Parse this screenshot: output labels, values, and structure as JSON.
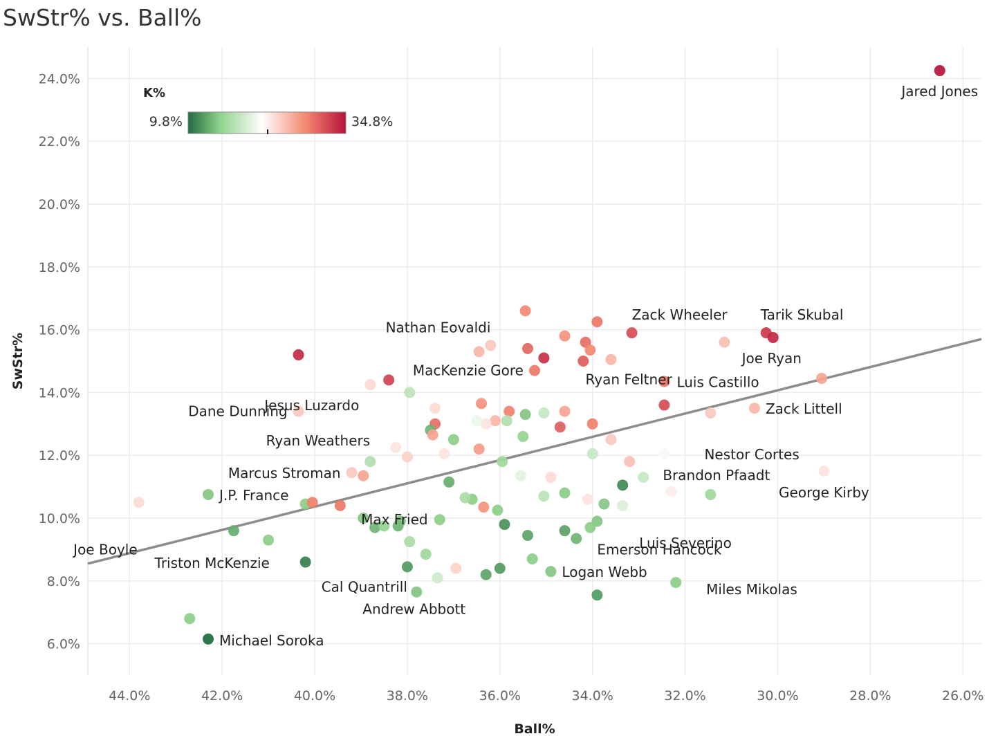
{
  "chart_data": {
    "type": "scatter",
    "title": "SwStr% vs. Ball%",
    "xlabel": "Ball%",
    "ylabel": "SwStr%",
    "x_reversed": true,
    "xlim": [
      44.9,
      25.6
    ],
    "ylim": [
      5.0,
      25.0
    ],
    "x_ticks": [
      44,
      42,
      40,
      38,
      36,
      34,
      32,
      30,
      28,
      26
    ],
    "x_tick_labels": [
      "44.0%",
      "42.0%",
      "40.0%",
      "38.0%",
      "36.0%",
      "34.0%",
      "32.0%",
      "30.0%",
      "28.0%",
      "26.0%"
    ],
    "y_ticks": [
      6,
      8,
      10,
      12,
      14,
      16,
      18,
      20,
      22,
      24
    ],
    "y_tick_labels": [
      "6.0%",
      "8.0%",
      "10.0%",
      "12.0%",
      "14.0%",
      "16.0%",
      "18.0%",
      "20.0%",
      "22.0%",
      "24.0%"
    ],
    "grid": true,
    "trend_line": {
      "x": [
        44.9,
        25.6
      ],
      "y": [
        8.55,
        15.7
      ]
    },
    "color_legend": {
      "title": "K%",
      "min_label": "9.8%",
      "max_label": "34.8%",
      "min": 9.8,
      "max": 34.8,
      "mid": 21.5,
      "colors": [
        "#1f6b3f",
        "#8fd18a",
        "#ffffff",
        "#f4866f",
        "#b5123b"
      ],
      "placement": "top-left"
    },
    "points": [
      {
        "name": "Jared Jones",
        "x": 26.5,
        "y": 24.25,
        "k": 34.8
      },
      {
        "name": "Tarik Skubal",
        "x": 30.25,
        "y": 15.9,
        "k": 32.5
      },
      {
        "name": "Joe Ryan",
        "x": 30.1,
        "y": 15.75,
        "k": 33.5
      },
      {
        "name": "Zack Wheeler",
        "x": 33.15,
        "y": 15.9,
        "k": 31.5
      },
      {
        "name": "Nathan Eovaldi",
        "x": 36.2,
        "y": 15.5,
        "k": 24.5
      },
      {
        "name": "MacKenzie Gore",
        "x": 35.25,
        "y": 14.7,
        "k": 29.0
      },
      {
        "name": "Ryan Feltner",
        "x": 33.6,
        "y": 15.05,
        "k": 25.5
      },
      {
        "name": "Luis Castillo",
        "x": 32.45,
        "y": 14.35,
        "k": 29.0
      },
      {
        "name": "Zack Littell",
        "x": 30.5,
        "y": 13.5,
        "k": 25.5
      },
      {
        "name": "Jesus Luzardo",
        "x": 38.8,
        "y": 14.25,
        "k": 23.5
      },
      {
        "name": "Dane Dunning",
        "x": 40.35,
        "y": 13.4,
        "k": 24.5
      },
      {
        "name": "Ryan Weathers",
        "x": 38.25,
        "y": 12.25,
        "k": 23.0
      },
      {
        "name": "Nestor Cortes",
        "x": 32.45,
        "y": 12.05,
        "k": 21.0
      },
      {
        "name": "Marcus Stroman",
        "x": 39.2,
        "y": 11.45,
        "k": 24.5
      },
      {
        "name": "Brandon Pfaadt",
        "x": 32.9,
        "y": 11.3,
        "k": 18.5
      },
      {
        "name": "George Kirby",
        "x": 29.0,
        "y": 11.5,
        "k": 23.0
      },
      {
        "name": "J.P. France",
        "x": 42.3,
        "y": 10.75,
        "k": 15.0
      },
      {
        "name": "Luis Severino",
        "x": 33.35,
        "y": 10.4,
        "k": 19.5
      },
      {
        "name": "Max Fried",
        "x": 36.6,
        "y": 10.6,
        "k": 15.5
      },
      {
        "name": "Joe Boyle",
        "x": 43.8,
        "y": 10.5,
        "k": 23.5
      },
      {
        "name": "Emerson Hancock",
        "x": 33.9,
        "y": 9.9,
        "k": 15.0
      },
      {
        "name": "Triston McKenzie",
        "x": 41.75,
        "y": 9.6,
        "k": 13.5
      },
      {
        "name": "Logan Webb",
        "x": 34.9,
        "y": 8.3,
        "k": 15.0
      },
      {
        "name": "Cal Quantrill",
        "x": 38.0,
        "y": 8.45,
        "k": 12.5
      },
      {
        "name": "Miles Mikolas",
        "x": 32.2,
        "y": 7.95,
        "k": 15.5
      },
      {
        "name": "Andrew Abbott",
        "x": 37.8,
        "y": 7.65,
        "k": 15.0
      },
      {
        "name": "Michael Soroka",
        "x": 42.3,
        "y": 6.15,
        "k": 9.8
      },
      {
        "name": "",
        "x": 42.7,
        "y": 6.8,
        "k": 15.5
      },
      {
        "name": "",
        "x": 40.35,
        "y": 15.2,
        "k": 33.5
      },
      {
        "name": "",
        "x": 38.4,
        "y": 14.4,
        "k": 32.0
      },
      {
        "name": "",
        "x": 37.95,
        "y": 14.0,
        "k": 18.0
      },
      {
        "name": "",
        "x": 35.45,
        "y": 16.6,
        "k": 28.0
      },
      {
        "name": "",
        "x": 33.9,
        "y": 16.25,
        "k": 29.0
      },
      {
        "name": "",
        "x": 34.6,
        "y": 15.8,
        "k": 27.5
      },
      {
        "name": "",
        "x": 34.15,
        "y": 15.6,
        "k": 29.5
      },
      {
        "name": "",
        "x": 34.05,
        "y": 15.35,
        "k": 28.0
      },
      {
        "name": "",
        "x": 35.4,
        "y": 15.4,
        "k": 30.0
      },
      {
        "name": "",
        "x": 35.05,
        "y": 15.1,
        "k": 33.0
      },
      {
        "name": "",
        "x": 34.2,
        "y": 15.0,
        "k": 30.5
      },
      {
        "name": "",
        "x": 36.45,
        "y": 15.3,
        "k": 25.5
      },
      {
        "name": "",
        "x": 31.15,
        "y": 15.6,
        "k": 25.0
      },
      {
        "name": "",
        "x": 29.05,
        "y": 14.45,
        "k": 26.5
      },
      {
        "name": "",
        "x": 32.45,
        "y": 13.6,
        "k": 31.5
      },
      {
        "name": "",
        "x": 31.45,
        "y": 13.35,
        "k": 24.5
      },
      {
        "name": "",
        "x": 36.4,
        "y": 13.65,
        "k": 27.5
      },
      {
        "name": "",
        "x": 35.8,
        "y": 13.4,
        "k": 28.5
      },
      {
        "name": "",
        "x": 34.6,
        "y": 13.4,
        "k": 26.5
      },
      {
        "name": "",
        "x": 37.4,
        "y": 13.5,
        "k": 23.5
      },
      {
        "name": "",
        "x": 37.4,
        "y": 13.0,
        "k": 29.5
      },
      {
        "name": "",
        "x": 36.1,
        "y": 13.1,
        "k": 25.5
      },
      {
        "name": "",
        "x": 36.3,
        "y": 13.0,
        "k": 23.0
      },
      {
        "name": "",
        "x": 34.0,
        "y": 13.0,
        "k": 28.5
      },
      {
        "name": "",
        "x": 34.7,
        "y": 12.9,
        "k": 30.5
      },
      {
        "name": "",
        "x": 37.5,
        "y": 12.8,
        "k": 14.0
      },
      {
        "name": "",
        "x": 37.45,
        "y": 12.65,
        "k": 26.5
      },
      {
        "name": "",
        "x": 37.0,
        "y": 12.5,
        "k": 15.5
      },
      {
        "name": "",
        "x": 35.45,
        "y": 13.3,
        "k": 15.0
      },
      {
        "name": "",
        "x": 35.05,
        "y": 13.35,
        "k": 18.5
      },
      {
        "name": "",
        "x": 35.85,
        "y": 13.1,
        "k": 17.5
      },
      {
        "name": "",
        "x": 36.5,
        "y": 13.1,
        "k": 20.5
      },
      {
        "name": "",
        "x": 35.5,
        "y": 12.6,
        "k": 16.0
      },
      {
        "name": "",
        "x": 33.6,
        "y": 12.5,
        "k": 24.5
      },
      {
        "name": "",
        "x": 36.45,
        "y": 12.2,
        "k": 27.0
      },
      {
        "name": "",
        "x": 37.2,
        "y": 12.05,
        "k": 23.0
      },
      {
        "name": "",
        "x": 38.0,
        "y": 11.95,
        "k": 24.0
      },
      {
        "name": "",
        "x": 38.8,
        "y": 11.8,
        "k": 17.5
      },
      {
        "name": "",
        "x": 34.0,
        "y": 12.05,
        "k": 18.5
      },
      {
        "name": "",
        "x": 35.95,
        "y": 11.8,
        "k": 16.5
      },
      {
        "name": "",
        "x": 33.2,
        "y": 11.8,
        "k": 25.0
      },
      {
        "name": "",
        "x": 38.95,
        "y": 11.35,
        "k": 26.5
      },
      {
        "name": "",
        "x": 37.1,
        "y": 11.15,
        "k": 13.5
      },
      {
        "name": "",
        "x": 35.55,
        "y": 11.35,
        "k": 20.0
      },
      {
        "name": "",
        "x": 34.9,
        "y": 11.3,
        "k": 23.5
      },
      {
        "name": "",
        "x": 33.35,
        "y": 11.05,
        "k": 11.5
      },
      {
        "name": "",
        "x": 34.6,
        "y": 10.8,
        "k": 15.5
      },
      {
        "name": "",
        "x": 35.05,
        "y": 10.7,
        "k": 18.0
      },
      {
        "name": "",
        "x": 34.1,
        "y": 10.6,
        "k": 23.0
      },
      {
        "name": "",
        "x": 33.05,
        "y": 10.65,
        "k": 21.5
      },
      {
        "name": "",
        "x": 32.3,
        "y": 10.85,
        "k": 22.5
      },
      {
        "name": "",
        "x": 31.45,
        "y": 10.75,
        "k": 16.5
      },
      {
        "name": "",
        "x": 33.75,
        "y": 10.45,
        "k": 15.0
      },
      {
        "name": "",
        "x": 40.2,
        "y": 10.45,
        "k": 15.5
      },
      {
        "name": "",
        "x": 40.05,
        "y": 10.5,
        "k": 28.5
      },
      {
        "name": "",
        "x": 39.45,
        "y": 10.4,
        "k": 29.0
      },
      {
        "name": "",
        "x": 36.75,
        "y": 10.65,
        "k": 17.0
      },
      {
        "name": "",
        "x": 36.35,
        "y": 10.35,
        "k": 27.5
      },
      {
        "name": "",
        "x": 36.05,
        "y": 10.25,
        "k": 15.5
      },
      {
        "name": "",
        "x": 38.95,
        "y": 10.0,
        "k": 15.0
      },
      {
        "name": "",
        "x": 38.7,
        "y": 9.7,
        "k": 14.0
      },
      {
        "name": "",
        "x": 38.5,
        "y": 9.75,
        "k": 16.0
      },
      {
        "name": "",
        "x": 38.2,
        "y": 9.75,
        "k": 14.0
      },
      {
        "name": "",
        "x": 38.15,
        "y": 9.9,
        "k": 14.5
      },
      {
        "name": "",
        "x": 37.3,
        "y": 9.95,
        "k": 15.5
      },
      {
        "name": "",
        "x": 35.9,
        "y": 9.8,
        "k": 12.0
      },
      {
        "name": "",
        "x": 34.6,
        "y": 9.6,
        "k": 13.0
      },
      {
        "name": "",
        "x": 35.4,
        "y": 9.45,
        "k": 13.0
      },
      {
        "name": "",
        "x": 34.35,
        "y": 9.35,
        "k": 14.0
      },
      {
        "name": "",
        "x": 34.05,
        "y": 9.7,
        "k": 15.5
      },
      {
        "name": "",
        "x": 41.0,
        "y": 9.3,
        "k": 15.5
      },
      {
        "name": "",
        "x": 37.95,
        "y": 9.25,
        "k": 17.0
      },
      {
        "name": "",
        "x": 37.6,
        "y": 8.85,
        "k": 16.5
      },
      {
        "name": "",
        "x": 35.3,
        "y": 8.7,
        "k": 15.5
      },
      {
        "name": "",
        "x": 40.2,
        "y": 8.6,
        "k": 11.0
      },
      {
        "name": "",
        "x": 36.95,
        "y": 8.4,
        "k": 24.0
      },
      {
        "name": "",
        "x": 36.0,
        "y": 8.4,
        "k": 12.5
      },
      {
        "name": "",
        "x": 36.3,
        "y": 8.2,
        "k": 13.0
      },
      {
        "name": "",
        "x": 37.35,
        "y": 8.1,
        "k": 19.0
      },
      {
        "name": "",
        "x": 33.9,
        "y": 7.55,
        "k": 12.5
      }
    ]
  }
}
